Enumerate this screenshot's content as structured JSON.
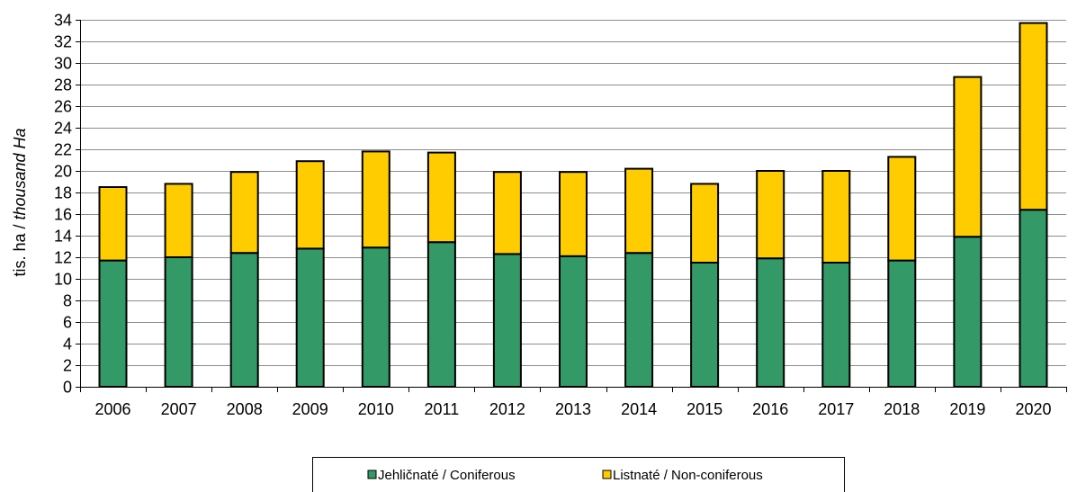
{
  "chart_data": {
    "type": "bar",
    "stacked": true,
    "categories": [
      "2006",
      "2007",
      "2008",
      "2009",
      "2010",
      "2011",
      "2012",
      "2013",
      "2014",
      "2015",
      "2016",
      "2017",
      "2018",
      "2019",
      "2020"
    ],
    "series": [
      {
        "name": "Jehličnaté / Coniferous",
        "color": "#339966",
        "values": [
          11.7,
          12.0,
          12.4,
          12.8,
          12.9,
          13.4,
          12.3,
          12.1,
          12.4,
          11.5,
          11.9,
          11.5,
          11.7,
          13.9,
          16.4
        ]
      },
      {
        "name": "Listnaté / Non-coniferous",
        "color": "#ffcc00",
        "values": [
          6.8,
          6.8,
          7.5,
          8.1,
          8.9,
          8.3,
          7.6,
          7.8,
          7.8,
          7.3,
          8.1,
          8.5,
          9.6,
          14.8,
          17.3
        ]
      }
    ],
    "ylabel_plain": "tis. ha / ",
    "ylabel_italic": "thousand Ha",
    "ylim": [
      0,
      34
    ],
    "ytick_step": 2,
    "grid": true,
    "legend_position": "bottom"
  }
}
